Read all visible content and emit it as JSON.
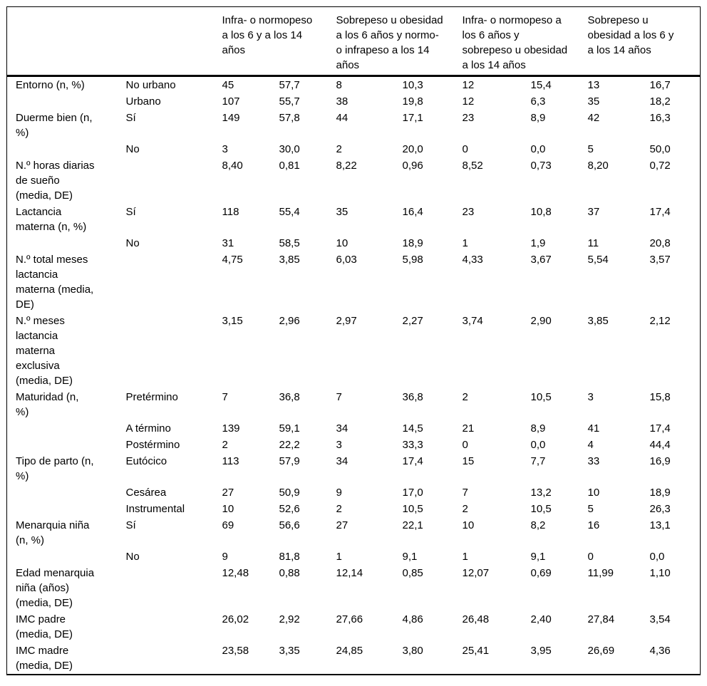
{
  "table": {
    "column_groups": [
      {
        "label": "Infra- o normopeso\na los 6 y a los 14\naños"
      },
      {
        "label": "Sobrepeso u obesidad\na los 6 años y normo-\no infrapeso a los 14\naños"
      },
      {
        "label": "Infra- o normopeso a\nlos 6 años y\nsobrepeso u obesidad\na los 14 años"
      },
      {
        "label": "Sobrepeso u\nobesidad a los 6 y\na los 14 años"
      }
    ],
    "rows": [
      {
        "label": "Entorno (n, %)",
        "sub": "No urbano",
        "values": [
          "45",
          "57,7",
          "8",
          "10,3",
          "12",
          "15,4",
          "13",
          "16,7"
        ]
      },
      {
        "label": "",
        "sub": "Urbano",
        "values": [
          "107",
          "55,7",
          "38",
          "19,8",
          "12",
          "6,3",
          "35",
          "18,2"
        ]
      },
      {
        "label": "Duerme bien (n,\n%)",
        "sub": "Sí",
        "values": [
          "149",
          "57,8",
          "44",
          "17,1",
          "23",
          "8,9",
          "42",
          "16,3"
        ]
      },
      {
        "label": "",
        "sub": "No",
        "values": [
          "3",
          "30,0",
          "2",
          "20,0",
          "0",
          "0,0",
          "5",
          "50,0"
        ]
      },
      {
        "label": "N.º horas diarias\nde sueño\n(media, DE)",
        "sub": "",
        "values": [
          "8,40",
          "0,81",
          "8,22",
          "0,96",
          "8,52",
          "0,73",
          "8,20",
          "0,72"
        ]
      },
      {
        "label": "Lactancia\nmaterna (n, %)",
        "sub": "Sí",
        "values": [
          "118",
          "55,4",
          "35",
          "16,4",
          "23",
          "10,8",
          "37",
          "17,4"
        ]
      },
      {
        "label": "",
        "sub": "No",
        "values": [
          "31",
          "58,5",
          "10",
          "18,9",
          "1",
          "1,9",
          "11",
          "20,8"
        ]
      },
      {
        "label": "N.º total meses\nlactancia\nmaterna (media,\nDE)",
        "sub": "",
        "values": [
          "4,75",
          "3,85",
          "6,03",
          "5,98",
          "4,33",
          "3,67",
          "5,54",
          "3,57"
        ]
      },
      {
        "label": "N.º meses\nlactancia\nmaterna\nexclusiva\n(media, DE)",
        "sub": "",
        "values": [
          "3,15",
          "2,96",
          "2,97",
          "2,27",
          "3,74",
          "2,90",
          "3,85",
          "2,12"
        ]
      },
      {
        "label": "Maturidad (n,\n%)",
        "sub": "Pretérmino",
        "values": [
          "7",
          "36,8",
          "7",
          "36,8",
          "2",
          "10,5",
          "3",
          "15,8"
        ]
      },
      {
        "label": "",
        "sub": "A término",
        "values": [
          "139",
          "59,1",
          "34",
          "14,5",
          "21",
          "8,9",
          "41",
          "17,4"
        ]
      },
      {
        "label": "",
        "sub": "Postérmino",
        "values": [
          "2",
          "22,2",
          "3",
          "33,3",
          "0",
          "0,0",
          "4",
          "44,4"
        ]
      },
      {
        "label": "Tipo de parto (n,\n%)",
        "sub": "Eutócico",
        "values": [
          "113",
          "57,9",
          "34",
          "17,4",
          "15",
          "7,7",
          "33",
          "16,9"
        ]
      },
      {
        "label": "",
        "sub": "Cesárea",
        "values": [
          "27",
          "50,9",
          "9",
          "17,0",
          "7",
          "13,2",
          "10",
          "18,9"
        ]
      },
      {
        "label": "",
        "sub": "Instrumental",
        "values": [
          "10",
          "52,6",
          "2",
          "10,5",
          "2",
          "10,5",
          "5",
          "26,3"
        ]
      },
      {
        "label": "Menarquia niña\n(n, %)",
        "sub": "Sí",
        "values": [
          "69",
          "56,6",
          "27",
          "22,1",
          "10",
          "8,2",
          "16",
          "13,1"
        ]
      },
      {
        "label": "",
        "sub": "No",
        "values": [
          "9",
          "81,8",
          "1",
          "9,1",
          "1",
          "9,1",
          "0",
          "0,0"
        ]
      },
      {
        "label": "Edad menarquia\nniña (años)\n(media, DE)",
        "sub": "",
        "values": [
          "12,48",
          "0,88",
          "12,14",
          "0,85",
          "12,07",
          "0,69",
          "11,99",
          "1,10"
        ]
      },
      {
        "label": "IMC padre\n(media, DE)",
        "sub": "",
        "values": [
          "26,02",
          "2,92",
          "27,66",
          "4,86",
          "26,48",
          "2,40",
          "27,84",
          "3,54"
        ]
      },
      {
        "label": "IMC madre\n(media, DE)",
        "sub": "",
        "values": [
          "23,58",
          "3,35",
          "24,85",
          "3,80",
          "25,41",
          "3,95",
          "26,69",
          "4,36"
        ]
      }
    ]
  }
}
